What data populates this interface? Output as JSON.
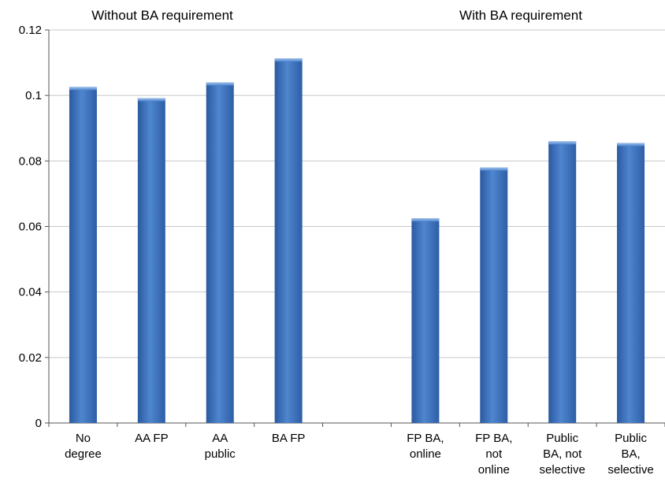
{
  "chart_data": {
    "type": "bar",
    "categories": [
      [
        "No",
        "degree"
      ],
      [
        "AA FP"
      ],
      [
        "AA",
        "public"
      ],
      [
        "BA FP"
      ],
      [],
      [
        "FP BA,",
        "online"
      ],
      [
        "FP BA,",
        "not",
        "online"
      ],
      [
        "Public",
        "BA, not",
        "selective"
      ],
      [
        "Public",
        "BA,",
        "selective"
      ]
    ],
    "values": [
      0.1026,
      0.0992,
      0.104,
      0.1113,
      null,
      0.0625,
      0.078,
      0.086,
      0.0855
    ],
    "ylim": [
      0,
      0.12
    ],
    "yticks": [
      "0",
      "0.02",
      "0.04",
      "0.06",
      "0.08",
      "0.1",
      "0.12"
    ],
    "ytick_values": [
      0,
      0.02,
      0.04,
      0.06,
      0.08,
      0.1,
      0.12
    ],
    "group_labels": [
      "Without BA requirement",
      "With BA requirement"
    ],
    "grid": true,
    "bar_color": "#3d72bd"
  }
}
